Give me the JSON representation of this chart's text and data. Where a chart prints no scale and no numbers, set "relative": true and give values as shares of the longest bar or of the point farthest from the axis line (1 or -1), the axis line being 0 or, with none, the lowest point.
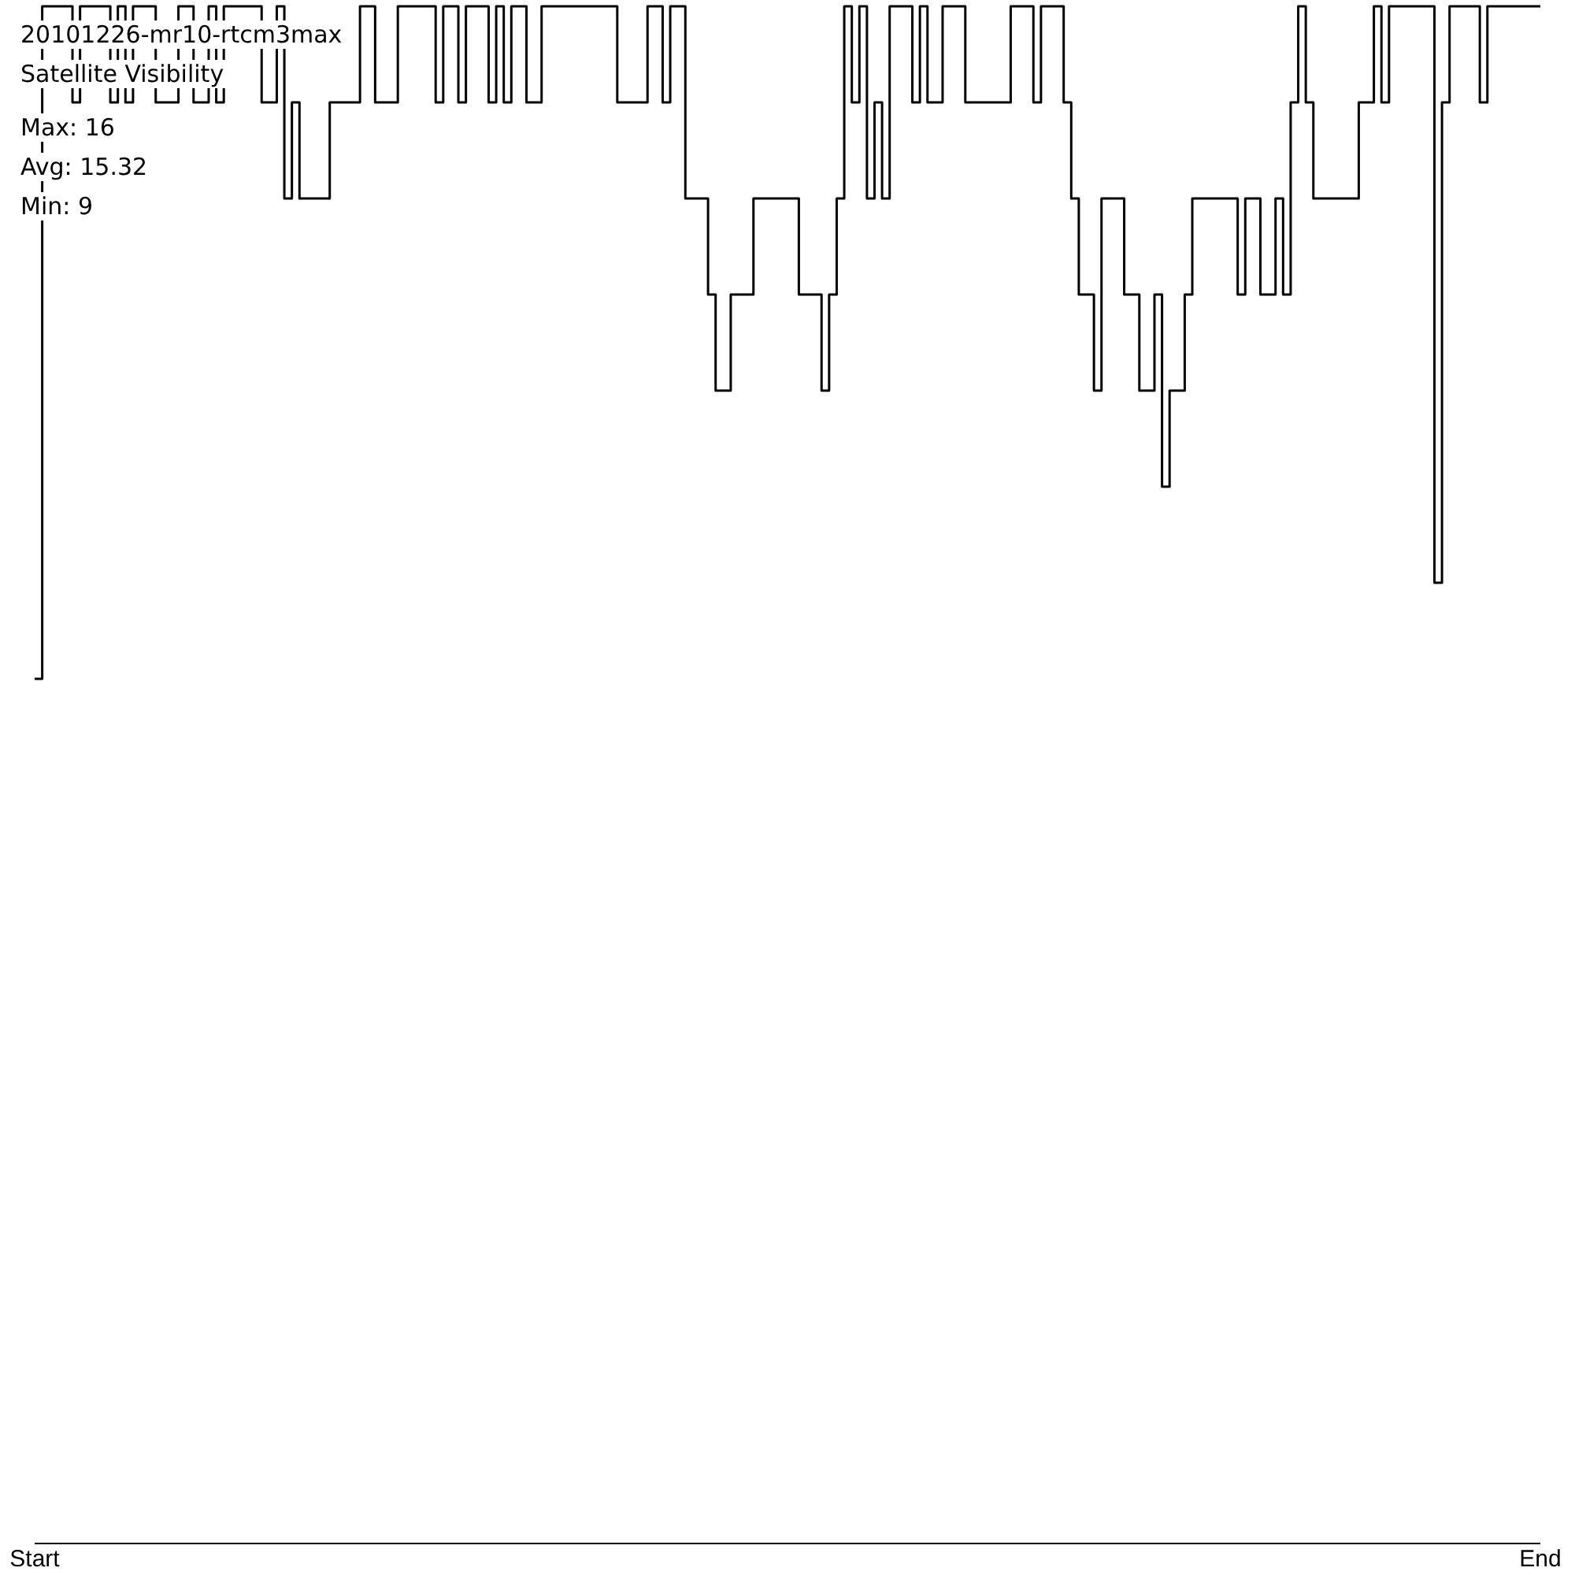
{
  "chart_data": {
    "type": "step",
    "title": "20101226-mr10-rtcm3max",
    "subtitle": "Satellite Visibility",
    "annotations": [
      "Max: 16",
      "Avg: 15.32",
      "Min: 9"
    ],
    "relative": true,
    "color": "#000000",
    "categories": [
      "Start",
      null,
      null,
      null,
      null,
      null,
      null,
      null,
      null,
      null,
      null,
      null,
      null,
      null,
      null,
      null,
      null,
      null,
      null,
      null,
      null,
      null,
      null,
      null,
      null,
      null,
      null,
      null,
      null,
      null,
      null,
      null,
      null,
      null,
      null,
      null,
      null,
      null,
      null,
      null,
      null,
      null,
      null,
      null,
      null,
      null,
      null,
      null,
      null,
      null,
      null,
      null,
      null,
      null,
      null,
      null,
      null,
      null,
      null,
      null,
      null,
      null,
      null,
      null,
      null,
      null,
      null,
      null,
      null,
      null,
      null,
      null,
      null,
      null,
      null,
      null,
      null,
      null,
      null,
      null,
      null,
      null,
      null,
      null,
      null,
      null,
      null,
      null,
      null,
      null,
      null,
      null,
      null,
      null,
      null,
      null,
      null,
      null,
      null,
      null,
      null,
      null,
      null,
      null,
      null,
      null,
      null,
      null,
      null,
      null,
      null,
      null,
      null,
      null,
      null,
      null,
      null,
      null,
      null,
      null,
      null,
      null,
      null,
      null,
      null,
      null,
      null,
      null,
      null,
      null,
      null,
      null,
      null,
      null,
      null,
      null,
      null,
      null,
      null,
      null,
      null,
      null,
      null,
      null,
      null,
      null,
      null,
      null,
      null,
      null,
      null,
      null,
      null,
      null,
      null,
      null,
      null,
      null,
      null,
      null,
      null,
      null,
      null,
      null,
      null,
      null,
      null,
      null,
      null,
      null,
      null,
      null,
      null,
      null,
      null,
      null,
      null,
      null,
      null,
      null,
      null,
      null,
      null,
      null,
      null,
      null,
      null,
      null,
      null,
      null,
      null,
      null,
      null,
      null,
      null,
      null,
      null,
      null,
      null,
      "End"
    ],
    "values": [
      0.5625,
      1,
      1,
      1,
      1,
      0.9375,
      1,
      1,
      1,
      1,
      0.9375,
      1,
      0.9375,
      1,
      1,
      1,
      0.9375,
      0.9375,
      0.9375,
      1,
      1,
      0.9375,
      0.9375,
      1,
      0.9375,
      1,
      1,
      1,
      1,
      1,
      0.9375,
      0.9375,
      1,
      0.875,
      0.9375,
      0.875,
      0.875,
      0.875,
      0.875,
      0.9375,
      0.9375,
      0.9375,
      0.9375,
      1,
      1,
      0.9375,
      0.9375,
      0.9375,
      1,
      1,
      1,
      1,
      1,
      0.9375,
      1,
      1,
      0.9375,
      1,
      1,
      1,
      0.9375,
      1,
      0.9375,
      1,
      1,
      0.9375,
      0.9375,
      1,
      1,
      1,
      1,
      1,
      1,
      1,
      1,
      1,
      1,
      0.9375,
      0.9375,
      0.9375,
      0.9375,
      1,
      1,
      0.9375,
      1,
      1,
      0.875,
      0.875,
      0.875,
      0.8125,
      0.75,
      0.75,
      0.8125,
      0.8125,
      0.8125,
      0.875,
      0.875,
      0.875,
      0.875,
      0.875,
      0.875,
      0.8125,
      0.8125,
      0.8125,
      0.75,
      0.8125,
      0.875,
      1,
      0.9375,
      1,
      0.875,
      0.9375,
      0.875,
      1,
      1,
      1,
      0.9375,
      1,
      0.9375,
      0.9375,
      1,
      1,
      1,
      0.9375,
      0.9375,
      0.9375,
      0.9375,
      0.9375,
      0.9375,
      1,
      1,
      1,
      0.9375,
      1,
      1,
      1,
      0.9375,
      0.875,
      0.8125,
      0.8125,
      0.75,
      0.875,
      0.875,
      0.875,
      0.8125,
      0.8125,
      0.75,
      0.75,
      0.8125,
      0.6875,
      0.75,
      0.75,
      0.8125,
      0.875,
      0.875,
      0.875,
      0.875,
      0.875,
      0.875,
      0.8125,
      0.875,
      0.875,
      0.8125,
      0.8125,
      0.875,
      0.8125,
      0.9375,
      1,
      0.9375,
      0.875,
      0.875,
      0.875,
      0.875,
      0.875,
      0.875,
      0.9375,
      0.9375,
      1,
      0.9375,
      1,
      1,
      1,
      1,
      1,
      1,
      0.625,
      0.9375,
      1,
      1,
      1,
      1,
      0.9375,
      1,
      1,
      1,
      1,
      1,
      1,
      1,
      1
    ]
  }
}
